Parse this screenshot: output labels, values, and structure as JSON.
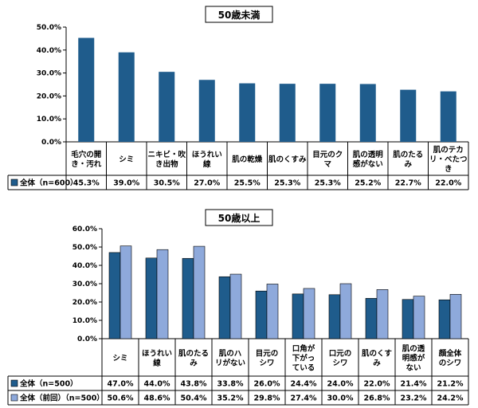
{
  "chart_data": [
    {
      "type": "bar",
      "title": "50歳未満",
      "categories": [
        [
          "毛穴の開",
          "き・汚れ"
        ],
        [
          "シミ"
        ],
        [
          "ニキビ・吹",
          "き出物"
        ],
        [
          "ほうれい",
          "線"
        ],
        [
          "肌の乾燥"
        ],
        [
          "肌のくすみ"
        ],
        [
          "目元のク",
          "マ"
        ],
        [
          "肌の透明",
          "感がない"
        ],
        [
          "肌のたる",
          "み"
        ],
        [
          "肌のテカ",
          "リ・べたつ",
          "き"
        ]
      ],
      "series": [
        {
          "name": "全体（n=600）",
          "color": "#1F5C8C",
          "values": [
            45.3,
            39.0,
            30.5,
            27.0,
            25.5,
            25.3,
            25.3,
            25.2,
            22.7,
            22.0
          ],
          "labels": [
            "45.3%",
            "39.0%",
            "30.5%",
            "27.0%",
            "25.5%",
            "25.3%",
            "25.3%",
            "25.2%",
            "22.7%",
            "22.0%"
          ]
        }
      ],
      "ylim": [
        0,
        50
      ],
      "yticks": [
        "0.0%",
        "10.0%",
        "20.0%",
        "30.0%",
        "40.0%",
        "50.0%"
      ]
    },
    {
      "type": "bar",
      "title": "50歳以上",
      "categories": [
        [
          "シミ"
        ],
        [
          "ほうれい",
          "線"
        ],
        [
          "肌のたる",
          "み"
        ],
        [
          "肌のハ",
          "リがない"
        ],
        [
          "目元の",
          "シワ"
        ],
        [
          "口角が",
          "下がっ",
          "ている"
        ],
        [
          "口元の",
          "シワ"
        ],
        [
          "肌のくす",
          "み"
        ],
        [
          "肌の透",
          "明感が",
          "ない"
        ],
        [
          "顔全体",
          "のシワ"
        ]
      ],
      "series": [
        {
          "name": "全体（n=500）",
          "color": "#1F5C8C",
          "values": [
            47.0,
            44.0,
            43.8,
            33.8,
            26.0,
            24.4,
            24.0,
            22.0,
            21.4,
            21.2
          ],
          "labels": [
            "47.0%",
            "44.0%",
            "43.8%",
            "33.8%",
            "26.0%",
            "24.4%",
            "24.0%",
            "22.0%",
            "21.4%",
            "21.2%"
          ]
        },
        {
          "name": "全体（前回）（n=500）",
          "color": "#8EA9DB",
          "values": [
            50.6,
            48.6,
            50.4,
            35.2,
            29.8,
            27.4,
            30.0,
            26.8,
            23.2,
            24.2
          ],
          "labels": [
            "50.6%",
            "48.6%",
            "50.4%",
            "35.2%",
            "29.8%",
            "27.4%",
            "30.0%",
            "26.8%",
            "23.2%",
            "24.2%"
          ]
        }
      ],
      "ylim": [
        0,
        60
      ],
      "yticks": [
        "0.0%",
        "10.0%",
        "20.0%",
        "30.0%",
        "40.0%",
        "50.0%",
        "60.0%"
      ]
    }
  ]
}
